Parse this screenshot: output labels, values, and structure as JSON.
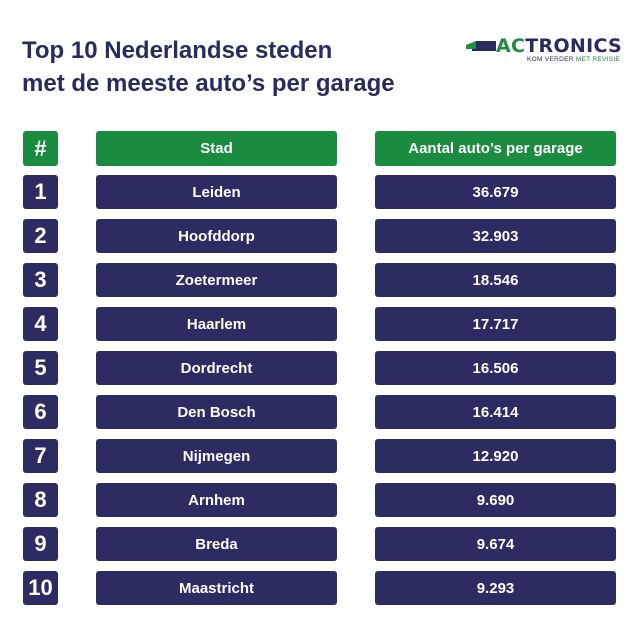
{
  "title_line1": "Top 10 Nederlandse steden",
  "title_line2": "met de meeste auto’s per garage",
  "logo": {
    "wordmark_accent": "AC",
    "wordmark_rest": "TRONICS",
    "tagline_a": "KOM VERDER",
    "tagline_b": "MET REVISIE"
  },
  "colors": {
    "header_green": "#1b8b3f",
    "row_navy": "#2c2b62",
    "title_navy": "#2a2a5e"
  },
  "table": {
    "headers": [
      "#",
      "Stad",
      "Aantal auto’s per garage"
    ]
  },
  "chart_data": {
    "type": "table",
    "columns": [
      "#",
      "Stad",
      "Aantal auto’s per garage"
    ],
    "rows": [
      {
        "rank": "1",
        "city": "Leiden",
        "value": "36.679"
      },
      {
        "rank": "2",
        "city": "Hoofddorp",
        "value": "32.903"
      },
      {
        "rank": "3",
        "city": "Zoetermeer",
        "value": "18.546"
      },
      {
        "rank": "4",
        "city": "Haarlem",
        "value": "17.717"
      },
      {
        "rank": "5",
        "city": "Dordrecht",
        "value": "16.506"
      },
      {
        "rank": "6",
        "city": "Den Bosch",
        "value": "16.414"
      },
      {
        "rank": "7",
        "city": "Nijmegen",
        "value": "12.920"
      },
      {
        "rank": "8",
        "city": "Arnhem",
        "value": "9.690"
      },
      {
        "rank": "9",
        "city": "Breda",
        "value": "9.674"
      },
      {
        "rank": "10",
        "city": "Maastricht",
        "value": "9.293"
      }
    ]
  }
}
